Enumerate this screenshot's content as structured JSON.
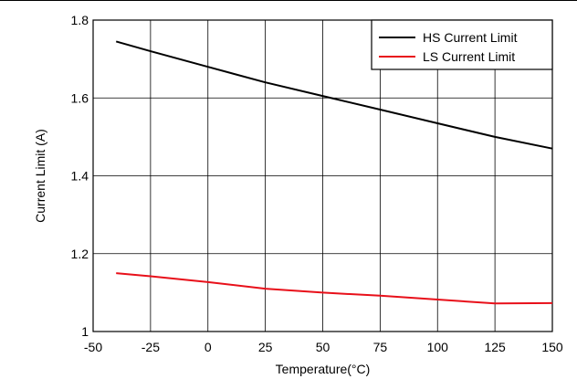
{
  "chart_data": {
    "type": "line",
    "title": "",
    "xlabel": "Temperature(°C)",
    "ylabel": "Current Limit (A)",
    "xlim": [
      -50,
      150
    ],
    "ylim": [
      1,
      1.8
    ],
    "x_ticks": [
      -50,
      -25,
      0,
      25,
      50,
      75,
      100,
      125,
      150
    ],
    "y_ticks": [
      1,
      1.2,
      1.4,
      1.6,
      1.8
    ],
    "x_tick_labels": [
      "-50",
      "-25",
      "0",
      "25",
      "50",
      "75",
      "100",
      "125",
      "150"
    ],
    "y_tick_labels": [
      "1",
      "1.2",
      "1.4",
      "1.6",
      "1.8"
    ],
    "grid": true,
    "legend_position": "top-right",
    "series": [
      {
        "name": "HS Current Limit",
        "color": "#000000",
        "x": [
          -40,
          -25,
          0,
          25,
          50,
          75,
          100,
          125,
          150
        ],
        "y": [
          1.745,
          1.72,
          1.68,
          1.64,
          1.605,
          1.57,
          1.535,
          1.5,
          1.47
        ]
      },
      {
        "name": "LS Current Limit",
        "color": "#e8101a",
        "x": [
          -40,
          -25,
          0,
          25,
          50,
          75,
          100,
          125,
          150
        ],
        "y": [
          1.15,
          1.142,
          1.127,
          1.11,
          1.1,
          1.092,
          1.082,
          1.072,
          1.073
        ]
      }
    ]
  }
}
